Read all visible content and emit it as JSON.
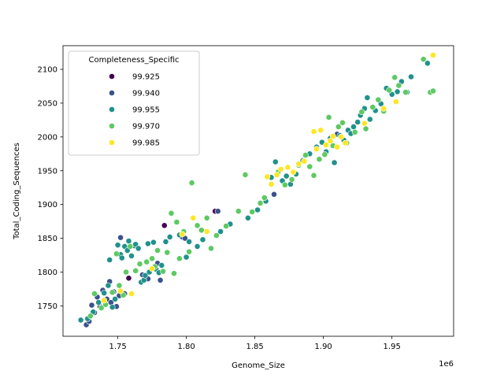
{
  "chart_data": {
    "type": "scatter",
    "xlabel": "Genome_Size",
    "ylabel": "Total_Coding_Sequences",
    "x_offset_label": "1e6",
    "xlim": [
      1.71,
      1.995
    ],
    "ylim": [
      1705,
      2135
    ],
    "x_ticks": [
      1.75,
      1.8,
      1.85,
      1.9,
      1.95
    ],
    "x_tick_labels": [
      "1.75",
      "1.80",
      "1.85",
      "1.90",
      "1.95"
    ],
    "y_ticks": [
      1750,
      1800,
      1850,
      1900,
      1950,
      2000,
      2050,
      2100
    ],
    "y_tick_labels": [
      "1750",
      "1800",
      "1850",
      "1900",
      "1950",
      "2000",
      "2050",
      "2100"
    ],
    "legend": {
      "title": "Completeness_Specific",
      "placement": "top-left",
      "entries": [
        {
          "label": "99.925",
          "color": "#440154"
        },
        {
          "label": "99.940",
          "color": "#3b528b"
        },
        {
          "label": "99.955",
          "color": "#21918c"
        },
        {
          "label": "99.970",
          "color": "#5ec962"
        },
        {
          "label": "99.985",
          "color": "#fde725"
        }
      ]
    },
    "series": [
      {
        "name": "99.925",
        "color": "#440154",
        "points": [
          [
            1.758,
            1791
          ],
          [
            1.784,
            1869
          ],
          [
            1.821,
            1890
          ]
        ]
      },
      {
        "name": "99.940",
        "color": "#3b528b",
        "points": [
          [
            1.727,
            1722
          ],
          [
            1.729,
            1727
          ],
          [
            1.731,
            1751
          ],
          [
            1.733,
            1740
          ],
          [
            1.735,
            1763
          ],
          [
            1.737,
            1749
          ],
          [
            1.739,
            1773
          ],
          [
            1.742,
            1760
          ],
          [
            1.744,
            1786
          ],
          [
            1.745,
            1755
          ],
          [
            1.747,
            1771
          ],
          [
            1.749,
            1749
          ],
          [
            1.751,
            1765
          ],
          [
            1.752,
            1851
          ],
          [
            1.755,
            1768
          ],
          [
            1.768,
            1796
          ],
          [
            1.772,
            1790
          ],
          [
            1.775,
            1805
          ],
          [
            1.779,
            1813
          ],
          [
            1.781,
            1788
          ],
          [
            1.797,
            1852
          ],
          [
            1.799,
            1850
          ],
          [
            1.823,
            1890
          ],
          [
            1.864,
            1915
          ],
          [
            1.91,
            2004
          ]
        ]
      },
      {
        "name": "99.955",
        "color": "#21918c",
        "points": [
          [
            1.723,
            1729
          ],
          [
            1.728,
            1731
          ],
          [
            1.732,
            1741
          ],
          [
            1.736,
            1755
          ],
          [
            1.74,
            1769
          ],
          [
            1.743,
            1780
          ],
          [
            1.744,
            1818
          ],
          [
            1.746,
            1748
          ],
          [
            1.748,
            1760
          ],
          [
            1.75,
            1840
          ],
          [
            1.752,
            1826
          ],
          [
            1.753,
            1821
          ],
          [
            1.755,
            1838
          ],
          [
            1.757,
            1832
          ],
          [
            1.758,
            1846
          ],
          [
            1.76,
            1824
          ],
          [
            1.762,
            1839
          ],
          [
            1.763,
            1841
          ],
          [
            1.765,
            1835
          ],
          [
            1.767,
            1785
          ],
          [
            1.769,
            1788
          ],
          [
            1.77,
            1795
          ],
          [
            1.772,
            1842
          ],
          [
            1.773,
            1800
          ],
          [
            1.776,
            1844
          ],
          [
            1.778,
            1804
          ],
          [
            1.78,
            1799
          ],
          [
            1.782,
            1810
          ],
          [
            1.785,
            1845
          ],
          [
            1.788,
            1852
          ],
          [
            1.795,
            1855
          ],
          [
            1.8,
            1822
          ],
          [
            1.802,
            1845
          ],
          [
            1.808,
            1838
          ],
          [
            1.812,
            1848
          ],
          [
            1.825,
            1860
          ],
          [
            1.832,
            1871
          ],
          [
            1.845,
            1880
          ],
          [
            1.852,
            1892
          ],
          [
            1.858,
            1905
          ],
          [
            1.862,
            1940
          ],
          [
            1.865,
            1963
          ],
          [
            1.87,
            1935
          ],
          [
            1.873,
            1942
          ],
          [
            1.876,
            1930
          ],
          [
            1.88,
            1945
          ],
          [
            1.885,
            1965
          ],
          [
            1.89,
            1975
          ],
          [
            1.895,
            1985
          ],
          [
            1.899,
            1992
          ],
          [
            1.902,
            1978
          ],
          [
            1.905,
            1998
          ],
          [
            1.908,
            1962
          ],
          [
            1.912,
            2002
          ],
          [
            1.915,
            1995
          ],
          [
            1.918,
            2010
          ],
          [
            1.92,
            2005
          ],
          [
            1.922,
            2015
          ],
          [
            1.925,
            2022
          ],
          [
            1.927,
            2032
          ],
          [
            1.93,
            2042
          ],
          [
            1.932,
            2058
          ],
          [
            1.934,
            2026
          ],
          [
            1.938,
            2039
          ],
          [
            1.942,
            2049
          ],
          [
            1.946,
            2072
          ],
          [
            1.95,
            2063
          ],
          [
            1.954,
            2067
          ],
          [
            1.957,
            2082
          ],
          [
            1.961,
            2066
          ],
          [
            1.964,
            2089
          ],
          [
            1.976,
            2109
          ]
        ]
      },
      {
        "name": "99.970",
        "color": "#5ec962",
        "points": [
          [
            1.73,
            1735
          ],
          [
            1.733,
            1768
          ],
          [
            1.738,
            1747
          ],
          [
            1.741,
            1752
          ],
          [
            1.746,
            1770
          ],
          [
            1.749,
            1827
          ],
          [
            1.751,
            1780
          ],
          [
            1.754,
            1766
          ],
          [
            1.756,
            1800
          ],
          [
            1.759,
            1838
          ],
          [
            1.763,
            1802
          ],
          [
            1.766,
            1812
          ],
          [
            1.771,
            1815
          ],
          [
            1.775,
            1820
          ],
          [
            1.777,
            1808
          ],
          [
            1.779,
            1832
          ],
          [
            1.783,
            1801
          ],
          [
            1.786,
            1829
          ],
          [
            1.789,
            1887
          ],
          [
            1.791,
            1798
          ],
          [
            1.793,
            1874
          ],
          [
            1.795,
            1820
          ],
          [
            1.798,
            1860
          ],
          [
            1.802,
            1830
          ],
          [
            1.804,
            1932
          ],
          [
            1.808,
            1869
          ],
          [
            1.811,
            1862
          ],
          [
            1.815,
            1880
          ],
          [
            1.818,
            1835
          ],
          [
            1.822,
            1854
          ],
          [
            1.829,
            1868
          ],
          [
            1.838,
            1890
          ],
          [
            1.843,
            1944
          ],
          [
            1.848,
            1889
          ],
          [
            1.854,
            1902
          ],
          [
            1.857,
            1910
          ],
          [
            1.867,
            1948
          ],
          [
            1.872,
            1929
          ],
          [
            1.877,
            1937
          ],
          [
            1.882,
            1958
          ],
          [
            1.887,
            1973
          ],
          [
            1.89,
            1956
          ],
          [
            1.893,
            1943
          ],
          [
            1.897,
            1967
          ],
          [
            1.901,
            1974
          ],
          [
            1.904,
            2029
          ],
          [
            1.907,
            1987
          ],
          [
            1.911,
            2015
          ],
          [
            1.914,
            2021
          ],
          [
            1.917,
            1991
          ],
          [
            1.923,
            2007
          ],
          [
            1.928,
            2037
          ],
          [
            1.931,
            2012
          ],
          [
            1.936,
            2044
          ],
          [
            1.94,
            2055
          ],
          [
            1.944,
            2038
          ],
          [
            1.948,
            2069
          ],
          [
            1.952,
            2088
          ],
          [
            1.955,
            2076
          ],
          [
            1.96,
            2066
          ],
          [
            1.973,
            2115
          ],
          [
            1.978,
            2066
          ],
          [
            1.98,
            2068
          ]
        ]
      },
      {
        "name": "99.985",
        "color": "#fde725",
        "points": [
          [
            1.74,
            1758
          ],
          [
            1.752,
            1772
          ],
          [
            1.76,
            1768
          ],
          [
            1.775,
            1805
          ],
          [
            1.797,
            1856
          ],
          [
            1.805,
            1880
          ],
          [
            1.815,
            1860
          ],
          [
            1.859,
            1941
          ],
          [
            1.862,
            1930
          ],
          [
            1.866,
            1944
          ],
          [
            1.869,
            1952
          ],
          [
            1.874,
            1955
          ],
          [
            1.878,
            1948
          ],
          [
            1.882,
            1960
          ],
          [
            1.886,
            1964
          ],
          [
            1.893,
            2008
          ],
          [
            1.895,
            1982
          ],
          [
            1.898,
            2010
          ],
          [
            1.902,
            1988
          ],
          [
            1.905,
            1994
          ],
          [
            1.907,
            2001
          ],
          [
            1.91,
            1985
          ],
          [
            1.913,
            2000
          ],
          [
            1.916,
            1991
          ],
          [
            1.93,
            2020
          ],
          [
            1.944,
            2042
          ],
          [
            1.953,
            2052
          ],
          [
            1.98,
            2121
          ]
        ]
      }
    ]
  }
}
